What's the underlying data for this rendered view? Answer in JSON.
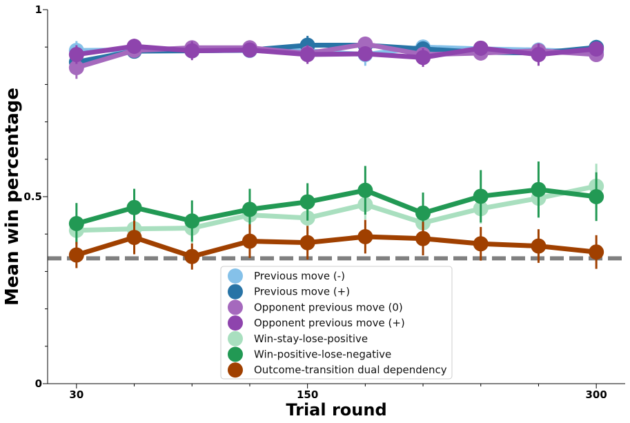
{
  "chart_data": {
    "type": "line",
    "xlabel": "Trial round",
    "ylabel": "Mean win percentage",
    "xlim": [
      15,
      315
    ],
    "ylim": [
      0,
      1
    ],
    "x_ticks_major": [
      30,
      150,
      300
    ],
    "x_ticks_minor": [
      60,
      90,
      120,
      180,
      210,
      240,
      270
    ],
    "y_ticks_major": [
      0,
      0.5,
      1
    ],
    "y_ticks_minor": [
      0.1,
      0.2,
      0.3,
      0.4,
      0.6,
      0.7,
      0.8,
      0.9
    ],
    "y_tick_labels": [
      "0",
      "0.5",
      "1"
    ],
    "x_tick_labels": [
      "30",
      "150",
      "300"
    ],
    "chance_line": {
      "y": 0.335,
      "color": "#808080",
      "style": "dashed"
    },
    "legend_position": "lower-center",
    "x": [
      30,
      60,
      90,
      120,
      150,
      180,
      210,
      240,
      270,
      300
    ],
    "series": [
      {
        "name": "Previous move (-)",
        "color": "#85c1e9",
        "values": [
          0.891,
          0.892,
          0.89,
          0.891,
          0.89,
          0.88,
          0.9,
          0.895,
          0.892,
          0.886
        ],
        "err": [
          0.025,
          0.02,
          0.02,
          0.02,
          0.02,
          0.03,
          0.02,
          0.02,
          0.02,
          0.02
        ]
      },
      {
        "name": "Previous move (+)",
        "color": "#2874a6",
        "values": [
          0.86,
          0.889,
          0.89,
          0.892,
          0.905,
          0.905,
          0.895,
          0.886,
          0.884,
          0.899
        ],
        "err": [
          0.025,
          0.02,
          0.02,
          0.02,
          0.025,
          0.02,
          0.02,
          0.02,
          0.02,
          0.02
        ]
      },
      {
        "name": "Opponent previous move (0)",
        "color": "#a569bd",
        "values": [
          0.845,
          0.891,
          0.898,
          0.898,
          0.883,
          0.908,
          0.88,
          0.884,
          0.89,
          0.88
        ],
        "err": [
          0.03,
          0.02,
          0.02,
          0.02,
          0.02,
          0.02,
          0.02,
          0.02,
          0.02,
          0.02
        ]
      },
      {
        "name": "Opponent previous move (+)",
        "color": "#8e44ad",
        "values": [
          0.88,
          0.902,
          0.89,
          0.892,
          0.88,
          0.882,
          0.872,
          0.897,
          0.88,
          0.895
        ],
        "err": [
          0.025,
          0.02,
          0.025,
          0.02,
          0.025,
          0.02,
          0.025,
          0.02,
          0.03,
          0.02
        ]
      },
      {
        "name": "Win-stay-lose-positive",
        "color": "#a9dfbf",
        "values": [
          0.41,
          0.414,
          0.416,
          0.451,
          0.443,
          0.479,
          0.43,
          0.468,
          0.496,
          0.528
        ],
        "err": [
          0.04,
          0.04,
          0.04,
          0.04,
          0.04,
          0.04,
          0.04,
          0.04,
          0.05,
          0.06
        ]
      },
      {
        "name": "Win-positive-lose-negative",
        "color": "#229954",
        "values": [
          0.428,
          0.471,
          0.435,
          0.466,
          0.486,
          0.517,
          0.456,
          0.501,
          0.519,
          0.5
        ],
        "err": [
          0.055,
          0.05,
          0.055,
          0.055,
          0.05,
          0.065,
          0.055,
          0.07,
          0.075,
          0.065
        ]
      },
      {
        "name": "Outcome-transition dual dependency",
        "color": "#a04000",
        "values": [
          0.344,
          0.391,
          0.34,
          0.381,
          0.377,
          0.393,
          0.388,
          0.374,
          0.368,
          0.352
        ],
        "err": [
          0.035,
          0.045,
          0.035,
          0.045,
          0.045,
          0.045,
          0.045,
          0.045,
          0.045,
          0.045
        ]
      }
    ]
  }
}
